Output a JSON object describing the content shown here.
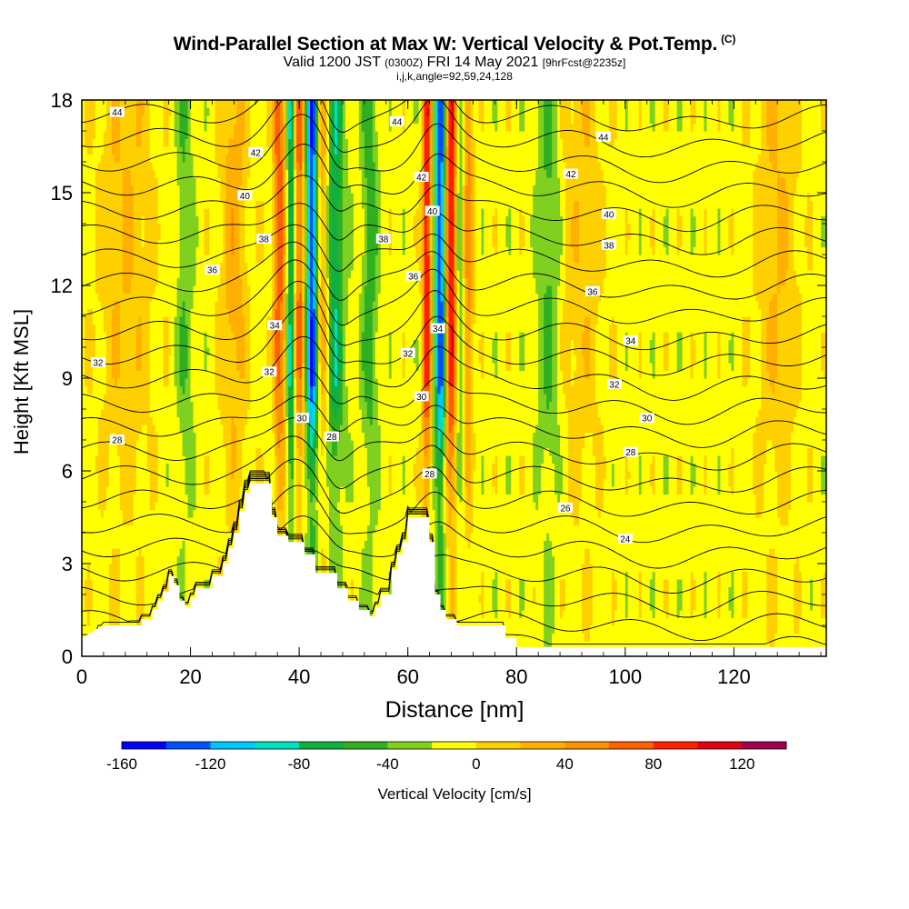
{
  "title": "Wind-Parallel Section at Max W: Vertical Velocity & Pot.Temp.",
  "title_mark": "(C)",
  "subtitle": {
    "valid": "Valid 1200 JST",
    "z": "(0300Z)",
    "date": "FRI 14 May 2021",
    "fcst": "[9hrFcst@2235z]"
  },
  "subtitle2": "i,j,k,angle=92,59,24,128",
  "chart_data": {
    "type": "heatmap",
    "xlabel": "Distance [nm]",
    "ylabel": "Height [Kft MSL]",
    "xlim": [
      0,
      137
    ],
    "ylim": [
      0,
      18
    ],
    "x_ticks": [
      0,
      20,
      40,
      60,
      80,
      100,
      120
    ],
    "y_ticks": [
      0,
      3,
      6,
      9,
      12,
      15,
      18
    ],
    "field": "Vertical Velocity",
    "colorbar": {
      "label": "Vertical Velocity [cm/s]",
      "tick_labels": [
        -160,
        -120,
        -80,
        -40,
        0,
        40,
        80,
        120
      ],
      "range": [
        -160,
        140
      ],
      "bins": [
        {
          "from": -160,
          "to": -140,
          "color": "#0000ff"
        },
        {
          "from": -140,
          "to": -120,
          "color": "#0050ff"
        },
        {
          "from": -120,
          "to": -100,
          "color": "#00c8ff"
        },
        {
          "from": -100,
          "to": -80,
          "color": "#00e0c0"
        },
        {
          "from": -80,
          "to": -60,
          "color": "#10b040"
        },
        {
          "from": -60,
          "to": -40,
          "color": "#30b020"
        },
        {
          "from": -40,
          "to": -20,
          "color": "#80d020"
        },
        {
          "from": -20,
          "to": 0,
          "color": "#ffff00"
        },
        {
          "from": 0,
          "to": 20,
          "color": "#ffd000"
        },
        {
          "from": 20,
          "to": 40,
          "color": "#ffb000"
        },
        {
          "from": 40,
          "to": 60,
          "color": "#ff9000"
        },
        {
          "from": 60,
          "to": 80,
          "color": "#ff6000"
        },
        {
          "from": 80,
          "to": 100,
          "color": "#ff2000"
        },
        {
          "from": 100,
          "to": 120,
          "color": "#e00010"
        },
        {
          "from": 120,
          "to": 140,
          "color": "#a00050"
        }
      ]
    },
    "background_value": -10,
    "updrafts": [
      {
        "x": 36,
        "w": 1.6,
        "value": 90
      },
      {
        "x": 40,
        "w": 1.0,
        "value": 80
      },
      {
        "x": 44,
        "w": 1.6,
        "value": 70
      },
      {
        "x": 63.5,
        "w": 0.8,
        "value": 110
      },
      {
        "x": 68,
        "w": 1.2,
        "value": 120
      },
      {
        "x": 71,
        "w": 1.0,
        "value": 60
      },
      {
        "x": 28,
        "w": 2.5,
        "value": 40
      },
      {
        "x": 8,
        "w": 5,
        "value": 30
      },
      {
        "x": 92,
        "w": 4,
        "value": 25
      },
      {
        "x": 128,
        "w": 4,
        "value": 30
      }
    ],
    "downdrafts": [
      {
        "x": 42.5,
        "w": 1.2,
        "value": -150
      },
      {
        "x": 38.5,
        "w": 0.8,
        "value": -90
      },
      {
        "x": 66,
        "w": 1.0,
        "value": -130
      },
      {
        "x": 46.5,
        "w": 1.8,
        "value": -70
      },
      {
        "x": 53,
        "w": 1.5,
        "value": -40
      },
      {
        "x": 35,
        "w": 0.8,
        "value": -50
      },
      {
        "x": 69.5,
        "w": 1.0,
        "value": -50
      },
      {
        "x": 86,
        "w": 2.0,
        "value": -35
      },
      {
        "x": 19,
        "w": 1.5,
        "value": -30
      }
    ],
    "isentropes": {
      "name": "Pot.Temp.",
      "levels": [
        23,
        24,
        25,
        26,
        27,
        28,
        29,
        30,
        31,
        32,
        33,
        34,
        35,
        36,
        37,
        38,
        39,
        40,
        41,
        42,
        43,
        44,
        45
      ],
      "labels": [
        {
          "text": "44",
          "x": 6.5,
          "y": 17.6
        },
        {
          "text": "44",
          "x": 58,
          "y": 17.3
        },
        {
          "text": "44",
          "x": 96,
          "y": 16.8
        },
        {
          "text": "42",
          "x": 32,
          "y": 16.3
        },
        {
          "text": "42",
          "x": 62.5,
          "y": 15.5
        },
        {
          "text": "42",
          "x": 90,
          "y": 15.6
        },
        {
          "text": "40",
          "x": 30,
          "y": 14.9
        },
        {
          "text": "40",
          "x": 64.5,
          "y": 14.4
        },
        {
          "text": "40",
          "x": 97,
          "y": 14.3
        },
        {
          "text": "38",
          "x": 33.5,
          "y": 13.5
        },
        {
          "text": "38",
          "x": 55.5,
          "y": 13.5
        },
        {
          "text": "38",
          "x": 97,
          "y": 13.3
        },
        {
          "text": "36",
          "x": 24,
          "y": 12.5
        },
        {
          "text": "36",
          "x": 61,
          "y": 12.3
        },
        {
          "text": "36",
          "x": 94,
          "y": 11.8
        },
        {
          "text": "34",
          "x": 35.5,
          "y": 10.7
        },
        {
          "text": "34",
          "x": 65.5,
          "y": 10.6
        },
        {
          "text": "34",
          "x": 101,
          "y": 10.2
        },
        {
          "text": "32",
          "x": 3,
          "y": 9.5
        },
        {
          "text": "32",
          "x": 60,
          "y": 9.8
        },
        {
          "text": "32",
          "x": 98,
          "y": 8.8
        },
        {
          "text": "32",
          "x": 34.5,
          "y": 9.2
        },
        {
          "text": "30",
          "x": 62.5,
          "y": 8.4
        },
        {
          "text": "30",
          "x": 40.5,
          "y": 7.7
        },
        {
          "text": "30",
          "x": 104,
          "y": 7.7
        },
        {
          "text": "28",
          "x": 6.5,
          "y": 7.0
        },
        {
          "text": "28",
          "x": 46,
          "y": 7.1
        },
        {
          "text": "28",
          "x": 101,
          "y": 6.6
        },
        {
          "text": "28",
          "x": 64,
          "y": 5.9
        },
        {
          "text": "26",
          "x": 89,
          "y": 4.8
        },
        {
          "text": "24",
          "x": 100,
          "y": 3.8
        }
      ]
    },
    "terrain": [
      [
        0,
        0.6
      ],
      [
        3,
        0.9
      ],
      [
        4,
        1.0
      ],
      [
        11,
        1.0
      ],
      [
        11,
        1.2
      ],
      [
        13,
        1.2
      ],
      [
        13,
        1.5
      ],
      [
        14,
        1.5
      ],
      [
        14,
        1.8
      ],
      [
        15,
        1.8
      ],
      [
        15,
        2.1
      ],
      [
        16,
        2.1
      ],
      [
        16,
        2.6
      ],
      [
        17,
        2.6
      ],
      [
        17,
        2.3
      ],
      [
        18,
        2.3
      ],
      [
        18,
        1.8
      ],
      [
        19,
        1.8
      ],
      [
        19,
        1.6
      ],
      [
        20,
        1.6
      ],
      [
        20,
        1.9
      ],
      [
        21,
        1.9
      ],
      [
        21,
        2.2
      ],
      [
        24,
        2.2
      ],
      [
        24,
        2.6
      ],
      [
        26,
        2.6
      ],
      [
        26,
        3.0
      ],
      [
        27,
        3.0
      ],
      [
        27,
        3.5
      ],
      [
        28,
        3.5
      ],
      [
        28,
        4.0
      ],
      [
        29,
        4.0
      ],
      [
        29,
        4.7
      ],
      [
        30,
        4.7
      ],
      [
        30,
        5.3
      ],
      [
        31,
        5.3
      ],
      [
        31,
        5.6
      ],
      [
        35,
        5.6
      ],
      [
        35,
        4.5
      ],
      [
        36,
        4.5
      ],
      [
        36,
        3.9
      ],
      [
        38,
        3.9
      ],
      [
        38,
        3.7
      ],
      [
        41,
        3.7
      ],
      [
        41,
        3.3
      ],
      [
        43,
        3.3
      ],
      [
        43,
        2.7
      ],
      [
        47,
        2.7
      ],
      [
        47,
        2.2
      ],
      [
        49,
        2.2
      ],
      [
        49,
        1.8
      ],
      [
        51,
        1.8
      ],
      [
        51,
        1.5
      ],
      [
        53,
        1.5
      ],
      [
        53,
        1.3
      ],
      [
        54,
        1.3
      ],
      [
        54,
        1.6
      ],
      [
        55,
        1.6
      ],
      [
        55,
        2.0
      ],
      [
        57,
        2.0
      ],
      [
        57,
        2.8
      ],
      [
        58,
        2.8
      ],
      [
        58,
        3.3
      ],
      [
        59,
        3.3
      ],
      [
        59,
        3.7
      ],
      [
        60,
        3.7
      ],
      [
        60,
        4.5
      ],
      [
        64,
        4.5
      ],
      [
        64,
        3.7
      ],
      [
        65,
        3.7
      ],
      [
        65,
        2.0
      ],
      [
        66,
        2.0
      ],
      [
        66,
        1.5
      ],
      [
        67,
        1.5
      ],
      [
        67,
        1.2
      ],
      [
        69,
        1.2
      ],
      [
        69,
        1.0
      ],
      [
        78,
        1.0
      ],
      [
        78,
        0.6
      ],
      [
        80,
        0.6
      ],
      [
        80,
        0.3
      ],
      [
        137,
        0.3
      ]
    ]
  }
}
